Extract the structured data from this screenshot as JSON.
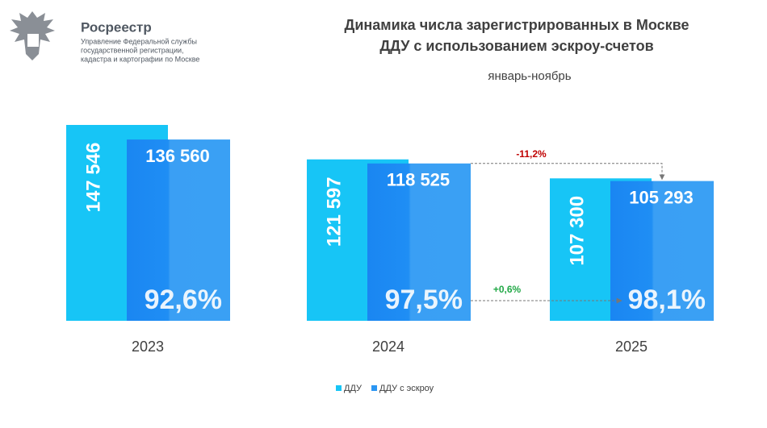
{
  "header": {
    "brand": "Росреестр",
    "org_lines": [
      "Управление Федеральной службы",
      "государственной регистрации,",
      "кадастра и картографии по Москве"
    ]
  },
  "chart_data": {
    "type": "bar",
    "title": [
      "Динамика числа зарегистрированных в Москве",
      "ДДУ с использованием эскроу-счетов"
    ],
    "subtitle": "январь-ноябрь",
    "categories": [
      "2023",
      "2024",
      "2025"
    ],
    "series": [
      {
        "name": "ДДУ",
        "color": "#17c5f6",
        "values": [
          147546,
          121597,
          107300
        ],
        "value_labels": [
          "147 546",
          "121 597",
          "107 300"
        ]
      },
      {
        "name": "ДДУ с эскроу",
        "color": "#2b96f3",
        "values": [
          136560,
          118525,
          105293
        ],
        "value_labels": [
          "136 560",
          "118 525",
          "105 293"
        ]
      }
    ],
    "shares": {
      "values": [
        92.6,
        97.5,
        98.1
      ],
      "value_labels": [
        "92,6%",
        "97,5%",
        "98,1%"
      ]
    },
    "changes": [
      {
        "label": "-11,2%",
        "color": "#c00000"
      },
      {
        "label": "+0,6%",
        "color": "#21a846"
      }
    ],
    "legend": "bottom"
  }
}
